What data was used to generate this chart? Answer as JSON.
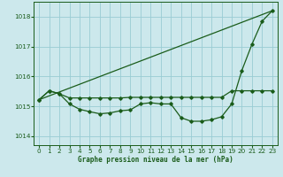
{
  "title": "Graphe pression niveau de la mer (hPa)",
  "bg_color": "#cce8ec",
  "grid_color": "#99ccd4",
  "line_color": "#1a5c1a",
  "xlim": [
    -0.5,
    23.5
  ],
  "ylim": [
    1013.7,
    1018.5
  ],
  "yticks": [
    1014,
    1015,
    1016,
    1017,
    1018
  ],
  "xticks": [
    0,
    1,
    2,
    3,
    4,
    5,
    6,
    7,
    8,
    9,
    10,
    11,
    12,
    13,
    14,
    15,
    16,
    17,
    18,
    19,
    20,
    21,
    22,
    23
  ],
  "series": [
    {
      "x": [
        0,
        1,
        2,
        3,
        4,
        5,
        6,
        7,
        8,
        9,
        10,
        11,
        12,
        13,
        14,
        15,
        16,
        17,
        18,
        19,
        20,
        21,
        22,
        23
      ],
      "y": [
        1015.22,
        1015.52,
        1015.42,
        1015.28,
        1015.28,
        1015.28,
        1015.28,
        1015.28,
        1015.28,
        1015.3,
        1015.3,
        1015.3,
        1015.3,
        1015.3,
        1015.3,
        1015.3,
        1015.3,
        1015.3,
        1015.3,
        1015.52,
        1015.52,
        1015.52,
        1015.52,
        1015.52
      ],
      "marker": "D",
      "ms": 1.8,
      "lw": 0.9
    },
    {
      "x": [
        0,
        1,
        2,
        3,
        4,
        5,
        6,
        7,
        8,
        9,
        10,
        11,
        12,
        13,
        14,
        15,
        16,
        17,
        18,
        19,
        20,
        21,
        22,
        23
      ],
      "y": [
        1015.22,
        1015.52,
        1015.42,
        1015.08,
        1014.9,
        1014.82,
        1014.75,
        1014.78,
        1014.85,
        1014.88,
        1015.08,
        1015.12,
        1015.08,
        1015.08,
        1014.62,
        1014.5,
        1014.5,
        1014.55,
        1014.65,
        1015.08,
        1016.2,
        1017.08,
        1017.85,
        1018.2
      ],
      "marker": "D",
      "ms": 1.8,
      "lw": 0.9
    },
    {
      "x": [
        0,
        23
      ],
      "y": [
        1015.22,
        1018.2
      ],
      "marker": null,
      "ms": 0,
      "lw": 0.9
    }
  ]
}
